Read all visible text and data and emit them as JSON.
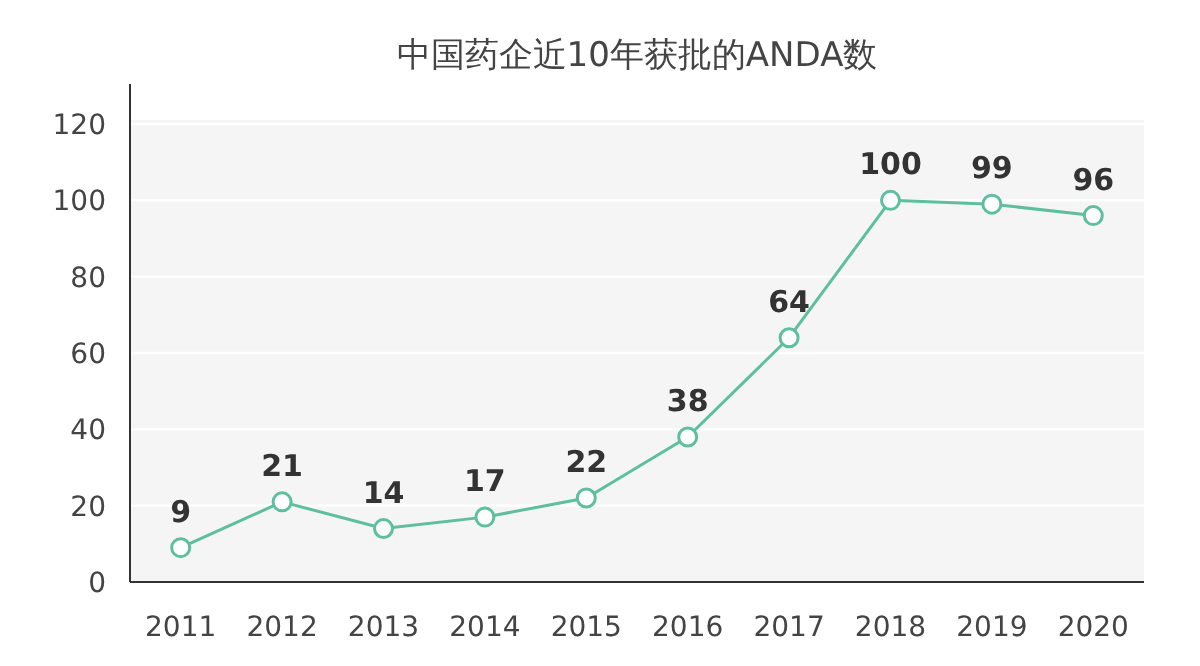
{
  "chart_data": {
    "type": "line",
    "title": "中国药企近10年获批的ANDA数",
    "categories": [
      "2011",
      "2012",
      "2013",
      "2014",
      "2015",
      "2016",
      "2017",
      "2018",
      "2019",
      "2020"
    ],
    "values": [
      9,
      21,
      14,
      17,
      22,
      38,
      64,
      100,
      99,
      96
    ],
    "color": "#5dbf9e",
    "ylim": [
      0,
      120
    ],
    "yticks": [
      0,
      20,
      40,
      60,
      80,
      100,
      120
    ],
    "grid": "y",
    "marker": "circle",
    "data_labels": true
  }
}
